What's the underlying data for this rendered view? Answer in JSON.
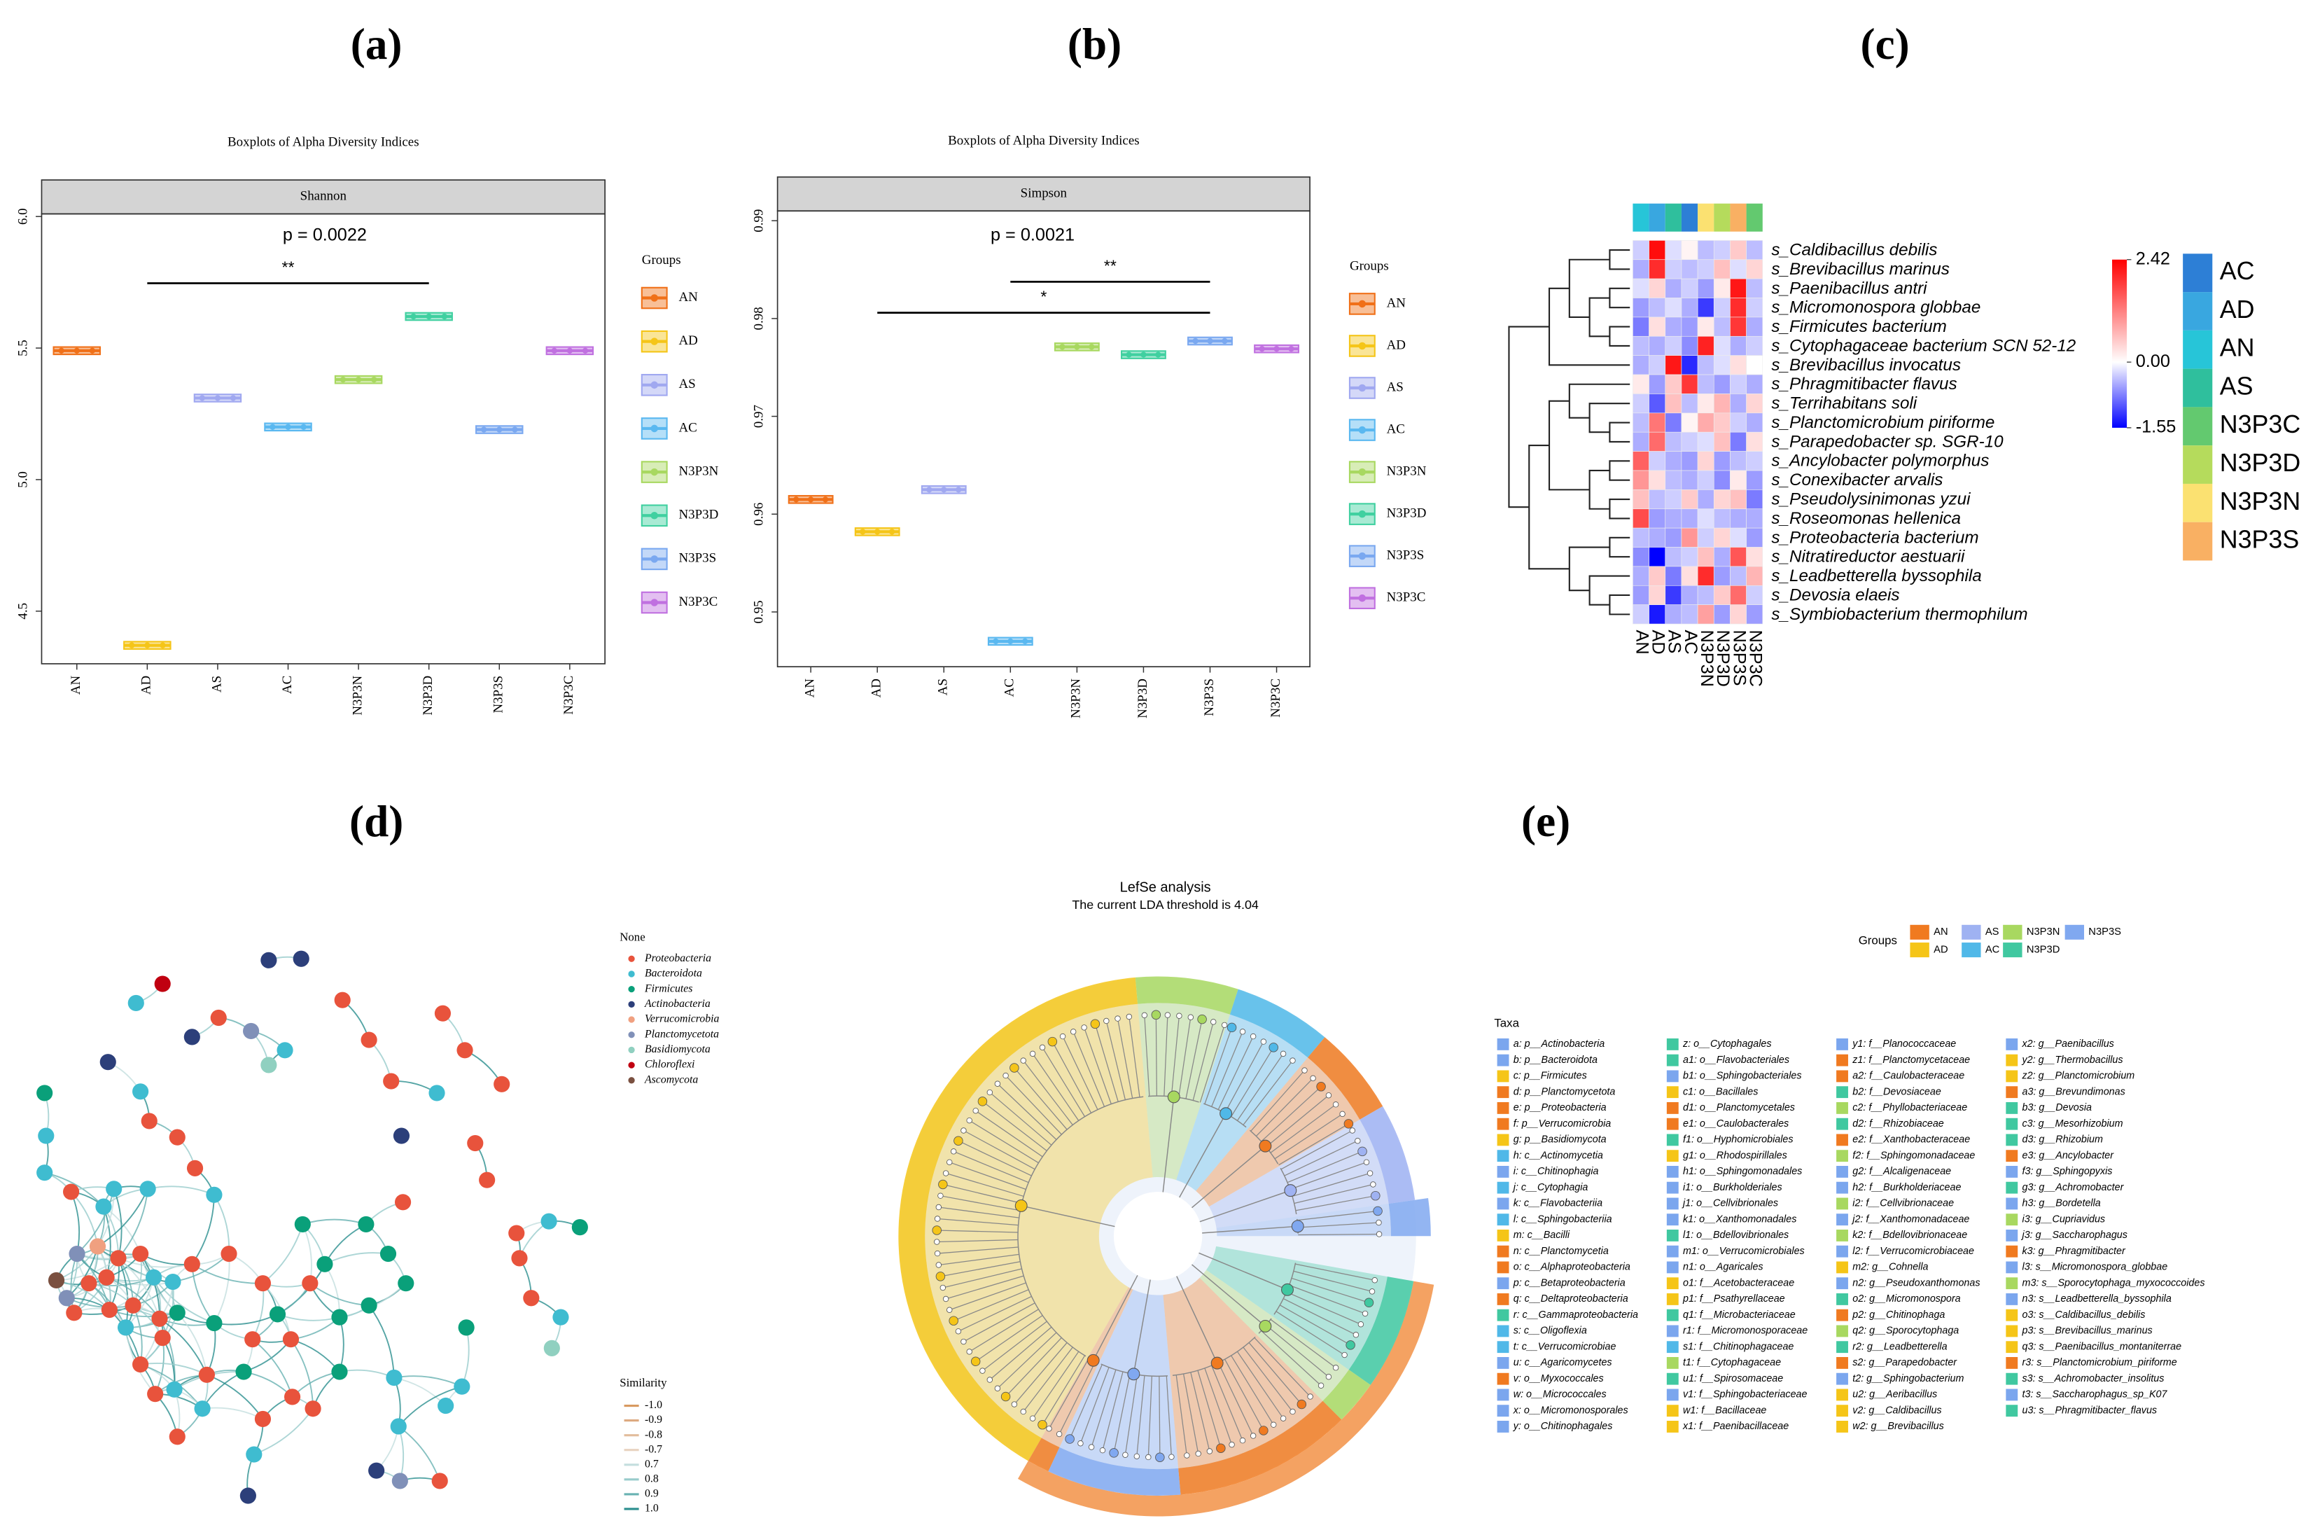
{
  "chart_data": [
    {
      "type": "box",
      "label": "(a)",
      "title": "Boxplots of Alpha Diversity Indices",
      "facet": "Shannon",
      "annotation": "p = 0.0022",
      "significance": [
        {
          "text": "**",
          "from": "AD",
          "to": "N3P3D"
        }
      ],
      "categories": [
        "AN",
        "AD",
        "AS",
        "AC",
        "N3P3N",
        "N3P3D",
        "N3P3S",
        "N3P3C"
      ],
      "values": [
        5.49,
        4.37,
        5.31,
        5.2,
        5.38,
        5.62,
        5.19,
        5.49
      ],
      "colors": [
        "#f07018",
        "#f5c518",
        "#a0a8f0",
        "#5ab8f0",
        "#a8d860",
        "#40d0a0",
        "#7aa8f0",
        "#c070e0"
      ],
      "ylim": [
        4.3,
        6.01
      ],
      "yticks": [
        4.5,
        {
          "value": 5,
          "label": "5.0"
        },
        5.5,
        {
          "value": 6,
          "label": "6.0"
        }
      ],
      "legend_title": "Groups"
    },
    {
      "type": "box",
      "label": "(b)",
      "title": "Boxplots of Alpha Diversity Indices",
      "facet": "Simpson",
      "annotation": "p = 0.0021",
      "significance": [
        {
          "text": "**",
          "from": "AC",
          "to": "N3P3S"
        },
        {
          "text": "*",
          "from": "AD",
          "to": "N3P3S"
        }
      ],
      "categories": [
        "AN",
        "AD",
        "AS",
        "AC",
        "N3P3N",
        "N3P3D",
        "N3P3S",
        "N3P3C"
      ],
      "values": [
        0.9615,
        0.9582,
        0.9625,
        0.947,
        0.9771,
        0.9763,
        0.9777,
        0.9769
      ],
      "colors": [
        "#f07018",
        "#f5c518",
        "#a0a8f0",
        "#5ab8f0",
        "#a8d860",
        "#40d0a0",
        "#7aa8f0",
        "#c070e0"
      ],
      "ylim": [
        0.9444,
        0.991
      ],
      "yticks": [
        0.95,
        0.96,
        0.97,
        0.98,
        0.99
      ],
      "legend_title": "Groups"
    },
    {
      "type": "heatmap",
      "label": "(c)",
      "rows": [
        "s_Caldibacillus debilis",
        "s_Brevibacillus marinus",
        "s_Paenibacillus antri",
        "s_Micromonospora globbae",
        "s_Firmicutes bacterium",
        "s_Cytophagaceae bacterium SCN 52-12",
        "s_Brevibacillus invocatus",
        "s_Phragmitibacter flavus",
        "s_Terrihabitans soli",
        "s_Planctomicrobium piriforme",
        "s_Parapedobacter sp. SGR-10",
        "s_Ancylobacter polymorphus",
        "s_Conexibacter arvalis",
        "s_Pseudolysinimonas yzui",
        "s_Roseomonas hellenica",
        "s_Proteobacteria bacterium",
        "s_Nitratireductor aestuarii",
        "s_Leadbetterella byssophila",
        "s_Devosia elaeis",
        "s_Symbiobacterium thermophilum"
      ],
      "columns": [
        "AN",
        "AD",
        "AS",
        "AC",
        "N3P3N",
        "N3P3D",
        "N3P3S",
        "N3P3C"
      ],
      "values": [
        [
          -0.3,
          2.3,
          -0.2,
          0.1,
          -0.4,
          -0.3,
          0.5,
          -0.4
        ],
        [
          -0.5,
          2.0,
          -0.3,
          -0.4,
          -0.3,
          0.6,
          -0.2,
          0.4
        ],
        [
          -0.2,
          0.4,
          -0.5,
          -0.3,
          -0.6,
          0.2,
          2.2,
          -0.4
        ],
        [
          -0.6,
          -0.4,
          -0.2,
          -0.5,
          -1.2,
          -0.3,
          2.0,
          -0.3
        ],
        [
          -0.8,
          0.3,
          -0.5,
          -0.6,
          0.2,
          -0.4,
          1.9,
          -0.5
        ],
        [
          -0.4,
          -0.5,
          -0.3,
          -0.7,
          2.1,
          -0.2,
          -0.5,
          -0.3
        ],
        [
          -0.5,
          -0.3,
          2.2,
          -1.3,
          -0.4,
          -0.2,
          0.3,
          0.0
        ],
        [
          0.2,
          -0.6,
          0.5,
          1.9,
          -0.4,
          -0.6,
          -0.3,
          -0.5
        ],
        [
          -0.3,
          -1.0,
          0.6,
          -0.4,
          0.2,
          0.7,
          -0.5,
          0.4
        ],
        [
          -0.4,
          1.3,
          -0.8,
          0.1,
          0.8,
          0.5,
          -0.3,
          -0.5
        ],
        [
          -0.5,
          1.4,
          -0.4,
          -0.3,
          -0.2,
          0.6,
          -0.8,
          0.3
        ],
        [
          1.5,
          -0.3,
          -0.5,
          -0.6,
          0.4,
          -0.6,
          -0.4,
          -0.3
        ],
        [
          1.0,
          0.3,
          -0.4,
          -0.5,
          -0.3,
          -0.7,
          0.2,
          -0.6
        ],
        [
          0.6,
          -0.4,
          -0.3,
          0.5,
          -0.5,
          0.4,
          0.6,
          -0.8
        ],
        [
          1.7,
          -0.6,
          -0.5,
          -0.5,
          -0.2,
          -0.4,
          -0.5,
          -0.5
        ],
        [
          -0.4,
          -0.5,
          -0.6,
          1.0,
          -0.3,
          0.4,
          -0.2,
          -0.6
        ],
        [
          -0.7,
          -1.55,
          -0.4,
          -0.3,
          0.6,
          -0.5,
          1.6,
          0.3
        ],
        [
          -0.5,
          0.5,
          -0.8,
          0.3,
          2.0,
          -0.6,
          -0.4,
          0.7
        ],
        [
          -0.6,
          0.4,
          -1.2,
          -0.5,
          -0.4,
          0.5,
          1.4,
          -0.3
        ],
        [
          -0.3,
          -1.4,
          -0.5,
          -0.4,
          0.9,
          -0.6,
          0.4,
          -0.6
        ]
      ],
      "vlim": [
        -1.55,
        2.42
      ],
      "colorscale": {
        "low": "#0000ff",
        "mid": "#ffffff",
        "high": "#ff0000"
      },
      "colorbar_ticks": [
        2.42,
        {
          "value": 0,
          "label": "0.00"
        },
        -1.55
      ],
      "legend": {
        "names": [
          "AC",
          "AD",
          "AN",
          "AS",
          "N3P3C",
          "N3P3D",
          "N3P3N",
          "N3P3S"
        ],
        "colors": [
          "#2d7fd6",
          "#39a7e0",
          "#27c5d8",
          "#2fbf9d",
          "#63c96f",
          "#b5db5c",
          "#fbe171",
          "#f9b063"
        ]
      }
    },
    {
      "type": "network",
      "label": "(d)",
      "legend_title": "None",
      "phyla": [
        "Proteobacteria",
        "Bacteroidota",
        "Firmicutes",
        "Actinobacteria",
        "Verrucomicrobia",
        "Planctomycetota",
        "Basidiomycota",
        "Chloroflexi",
        "Ascomycota"
      ],
      "phyla_colors": [
        "#e8533c",
        "#3fbcd0",
        "#0aa07a",
        "#2c3f7a",
        "#f0a080",
        "#8090b8",
        "#90d0c0",
        "#c00010",
        "#7a5040"
      ],
      "similarity_title": "Similarity",
      "similarity": [
        {
          "value": -1,
          "label": "-1.0"
        },
        -0.9,
        -0.8,
        -0.7,
        0.7,
        0.8,
        0.9,
        {
          "value": 1,
          "label": "1.0"
        }
      ],
      "similarity_colors": [
        "#d89a60",
        "#ddaa80",
        "#e2bd9c",
        "#e8d3c0",
        "#c4dede",
        "#98cccc",
        "#68b2b2",
        "#2a8e8e"
      ]
    },
    {
      "type": "cladogram",
      "label": "(e)",
      "title": "LefSe analysis",
      "subtitle": "The current LDA threshold is 4.04",
      "groups_title": "Groups",
      "groups": [
        "AN",
        "AD",
        "AS",
        "AC",
        "N3P3N",
        "N3P3D",
        "N3P3S"
      ],
      "group_colors": [
        "#f07a20",
        "#f5c518",
        "#9fb2f2",
        "#50b8e8",
        "#a8d860",
        "#40c8a0",
        "#80a8f0"
      ],
      "taxa_title": "Taxa",
      "taxa": [
        {
          "label": "a: p__Actinobacteria",
          "color": "#7ba6ee"
        },
        {
          "label": "b: p__Bacteroidota",
          "color": "#7ba6ee"
        },
        {
          "label": "c: p__Firmicutes",
          "color": "#f5c518"
        },
        {
          "label": "d: p__Planctomycetota",
          "color": "#f07a20"
        },
        {
          "label": "e: p__Proteobacteria",
          "color": "#f07a20"
        },
        {
          "label": "f: p__Verrucomicrobia",
          "color": "#f07a20"
        },
        {
          "label": "g: p__Basidiomycota",
          "color": "#f5c518"
        },
        {
          "label": "h: c__Actinomycetia",
          "color": "#50b8e8"
        },
        {
          "label": "i: c__Chitinophagia",
          "color": "#7ba6ee"
        },
        {
          "label": "j: c__Cytophagia",
          "color": "#50b8e8"
        },
        {
          "label": "k: c__Flavobacteriia",
          "color": "#7ba6ee"
        },
        {
          "label": "l: c__Sphingobacteriia",
          "color": "#50b8e8"
        },
        {
          "label": "m: c__Bacilli",
          "color": "#f5c518"
        },
        {
          "label": "n: c__Planctomycetia",
          "color": "#f07a20"
        },
        {
          "label": "o: c__Alphaproteobacteria",
          "color": "#f07a20"
        },
        {
          "label": "p: c__Betaproteobacteria",
          "color": "#7ba6ee"
        },
        {
          "label": "q: c__Deltaproteobacteria",
          "color": "#f07a20"
        },
        {
          "label": "r: c__Gammaproteobacteria",
          "color": "#40c8a0"
        },
        {
          "label": "s: c__Oligoflexia",
          "color": "#50b8e8"
        },
        {
          "label": "t: c__Verrucomicrobiae",
          "color": "#50b8e8"
        },
        {
          "label": "u: c__Agaricomycetes",
          "color": "#7ba6ee"
        },
        {
          "label": "v: o__Myxococcales",
          "color": "#f07a20"
        },
        {
          "label": "w: o__Micrococcales",
          "color": "#7ba6ee"
        },
        {
          "label": "x: o__Micromonosporales",
          "color": "#7ba6ee"
        },
        {
          "label": "y: o__Chitinophagales",
          "color": "#7ba6ee"
        },
        {
          "label": "z: o__Cytophagales",
          "color": "#40c8a0"
        },
        {
          "label": "a1: o__Flavobacteriales",
          "color": "#40c8a0"
        },
        {
          "label": "b1: o__Sphingobacteriales",
          "color": "#7ba6ee"
        },
        {
          "label": "c1: o__Bacillales",
          "color": "#f5c518"
        },
        {
          "label": "d1: o__Planctomycetales",
          "color": "#f07a20"
        },
        {
          "label": "e1: o__Caulobacterales",
          "color": "#f07a20"
        },
        {
          "label": "f1: o__Hyphomicrobiales",
          "color": "#40c8a0"
        },
        {
          "label": "g1: o__Rhodospirillales",
          "color": "#f5c518"
        },
        {
          "label": "h1: o__Sphingomonadales",
          "color": "#7ba6ee"
        },
        {
          "label": "i1: o__Burkholderiales",
          "color": "#7ba6ee"
        },
        {
          "label": "j1: o__Cellvibrionales",
          "color": "#7ba6ee"
        },
        {
          "label": "k1: o__Xanthomonadales",
          "color": "#7ba6ee"
        },
        {
          "label": "l1: o__Bdellovibrionales",
          "color": "#40c8a0"
        },
        {
          "label": "m1: o__Verrucomicrobiales",
          "color": "#7ba6ee"
        },
        {
          "label": "n1: o__Agaricales",
          "color": "#7ba6ee"
        },
        {
          "label": "o1: f__Acetobacteraceae",
          "color": "#f5c518"
        },
        {
          "label": "p1: f__Psathyrellaceae",
          "color": "#f5c518"
        },
        {
          "label": "q1: f__Microbacteriaceae",
          "color": "#40c8a0"
        },
        {
          "label": "r1: f__Micromonosporaceae",
          "color": "#7ba6ee"
        },
        {
          "label": "s1: f__Chitinophagaceae",
          "color": "#50b8e8"
        },
        {
          "label": "t1: f__Cytophagaceae",
          "color": "#a8d860"
        },
        {
          "label": "u1: f__Spirosomaceae",
          "color": "#40c8a0"
        },
        {
          "label": "v1: f__Sphingobacteriaceae",
          "color": "#7ba6ee"
        },
        {
          "label": "w1: f__Bacillaceae",
          "color": "#f5c518"
        },
        {
          "label": "x1: f__Paenibacillaceae",
          "color": "#f5c518"
        },
        {
          "label": "y1: f__Planococcaceae",
          "color": "#7ba6ee"
        },
        {
          "label": "z1: f__Planctomycetaceae",
          "color": "#f07a20"
        },
        {
          "label": "a2: f__Caulobacteraceae",
          "color": "#f07a20"
        },
        {
          "label": "b2: f__Devosiaceae",
          "color": "#40c8a0"
        },
        {
          "label": "c2: f__Phyllobacteriaceae",
          "color": "#a8d860"
        },
        {
          "label": "d2: f__Rhizobiaceae",
          "color": "#40c8a0"
        },
        {
          "label": "e2: f__Xanthobacteraceae",
          "color": "#f07a20"
        },
        {
          "label": "f2: f__Sphingomonadaceae",
          "color": "#a8d860"
        },
        {
          "label": "g2: f__Alcaligenaceae",
          "color": "#7ba6ee"
        },
        {
          "label": "h2: f__Burkholderiaceae",
          "color": "#7ba6ee"
        },
        {
          "label": "i2: f__Cellvibrionaceae",
          "color": "#a8d860"
        },
        {
          "label": "j2: f__Xanthomonadaceae",
          "color": "#7ba6ee"
        },
        {
          "label": "k2: f__Bdellovibrionaceae",
          "color": "#a8d860"
        },
        {
          "label": "l2: f__Verrucomicrobiaceae",
          "color": "#7ba6ee"
        },
        {
          "label": "m2: g__Cohnella",
          "color": "#f5c518"
        },
        {
          "label": "n2: g__Pseudoxanthomonas",
          "color": "#7ba6ee"
        },
        {
          "label": "o2: g__Micromonospora",
          "color": "#40c8a0"
        },
        {
          "label": "p2: g__Chitinophaga",
          "color": "#f07a20"
        },
        {
          "label": "q2: g__Sporocytophaga",
          "color": "#a8d860"
        },
        {
          "label": "r2: g__Leadbetterella",
          "color": "#40c8a0"
        },
        {
          "label": "s2: g__Parapedobacter",
          "color": "#f07a20"
        },
        {
          "label": "t2: g__Sphingobacterium",
          "color": "#7ba6ee"
        },
        {
          "label": "u2: g__Aeribacillus",
          "color": "#f5c518"
        },
        {
          "label": "v2: g__Caldibacillus",
          "color": "#f5c518"
        },
        {
          "label": "w2: g__Brevibacillus",
          "color": "#f5c518"
        },
        {
          "label": "x2: g__Paenibacillus",
          "color": "#7ba6ee"
        },
        {
          "label": "y2: g__Thermobacillus",
          "color": "#f5c518"
        },
        {
          "label": "z2: g__Planctomicrobium",
          "color": "#f5c518"
        },
        {
          "label": "a3: g__Brevundimonas",
          "color": "#f07a20"
        },
        {
          "label": "b3: g__Devosia",
          "color": "#40c8a0"
        },
        {
          "label": "c3: g__Mesorhizobium",
          "color": "#40c8a0"
        },
        {
          "label": "d3: g__Rhizobium",
          "color": "#40c8a0"
        },
        {
          "label": "e3: g__Ancylobacter",
          "color": "#f07a20"
        },
        {
          "label": "f3: g__Sphingopyxis",
          "color": "#7ba6ee"
        },
        {
          "label": "g3: g__Achromobacter",
          "color": "#40c8a0"
        },
        {
          "label": "h3: g__Bordetella",
          "color": "#7ba6ee"
        },
        {
          "label": "i3: g__Cupriavidus",
          "color": "#a8d860"
        },
        {
          "label": "j3: g__Saccharophagus",
          "color": "#7ba6ee"
        },
        {
          "label": "k3: g__Phragmitibacter",
          "color": "#f07a20"
        },
        {
          "label": "l3: s__Micromonospora_globbae",
          "color": "#7ba6ee"
        },
        {
          "label": "m3: s__Sporocytophaga_myxococcoides",
          "color": "#a8d860"
        },
        {
          "label": "n3: s__Leadbetterella_byssophila",
          "color": "#7ba6ee"
        },
        {
          "label": "o3: s__Caldibacillus_debilis",
          "color": "#f5c518"
        },
        {
          "label": "p3: s__Brevibacillus_marinus",
          "color": "#f5c518"
        },
        {
          "label": "q3: s__Paenibacillus_montaniterrae",
          "color": "#f5c518"
        },
        {
          "label": "r3: s__Planctomicrobium_piriforme",
          "color": "#f07a20"
        },
        {
          "label": "s3: s__Achromobacter_insolitus",
          "color": "#40c8a0"
        },
        {
          "label": "t3: s__Saccharophagus_sp_K07",
          "color": "#7ba6ee"
        },
        {
          "label": "u3: s__Phragmitibacter_flavus",
          "color": "#40c8a0"
        }
      ]
    }
  ]
}
